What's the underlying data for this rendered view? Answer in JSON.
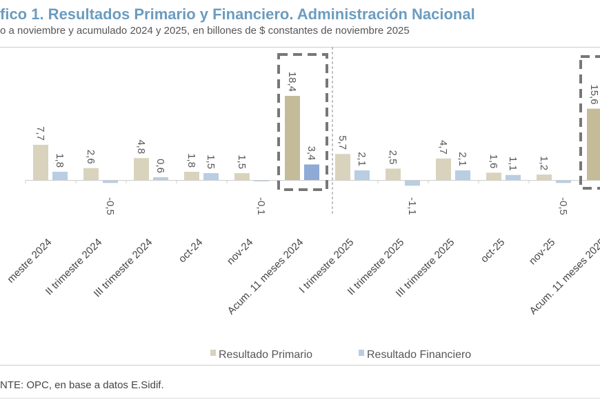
{
  "header": {
    "title": "fico 1. Resultados Primario y Financiero. Administración Nacional",
    "subtitle": "o a noviembre y acumulado 2024 y 2025, en billones de $ constantes de noviembre 2025"
  },
  "footer": {
    "source": "NTE: OPC, en base a datos E.Sidif."
  },
  "chart_data": {
    "type": "bar",
    "title": "",
    "xlabel": "",
    "ylabel": "",
    "categories": [
      "mestre 2024",
      "II trimestre 2024",
      "III trimestre 2024",
      "oct-24",
      "nov-24",
      "Acum. 11 meses 2024",
      "I trimestre 2025",
      "II trimestre 2025",
      "III trimestre 2025",
      "oct-25",
      "nov-25",
      "Acum. 11 meses 2025"
    ],
    "series": [
      {
        "name": "Resultado Primario",
        "color": "#d9d3bd",
        "highlight_color": "#c4bc98",
        "values": [
          7.7,
          2.6,
          4.8,
          1.8,
          1.5,
          18.4,
          5.7,
          2.5,
          4.7,
          1.6,
          1.2,
          15.6
        ],
        "labels": [
          "7,7",
          "2,6",
          "4,8",
          "1,8",
          "1,5",
          "18,4",
          "5,7",
          "2,5",
          "4,7",
          "1,6",
          "1,2",
          "15,6"
        ]
      },
      {
        "name": "Resultado Financiero",
        "color": "#b9cde3",
        "highlight_color": "#8eaad5",
        "values": [
          1.8,
          -0.5,
          0.6,
          1.5,
          -0.1,
          3.4,
          2.1,
          -1.1,
          2.1,
          1.1,
          -0.5,
          null
        ],
        "labels": [
          "1,8",
          "-0,5",
          "0,6",
          "1,5",
          "-0,1",
          "3,4",
          "2,1",
          "-1,1",
          "2,1",
          "1,1",
          "-0,5",
          ""
        ]
      }
    ],
    "highlighted_categories": [
      "Acum. 11 meses 2024",
      "Acum. 11 meses 2025"
    ],
    "legend_position": "bottom",
    "grid": false,
    "data_labels": true
  }
}
